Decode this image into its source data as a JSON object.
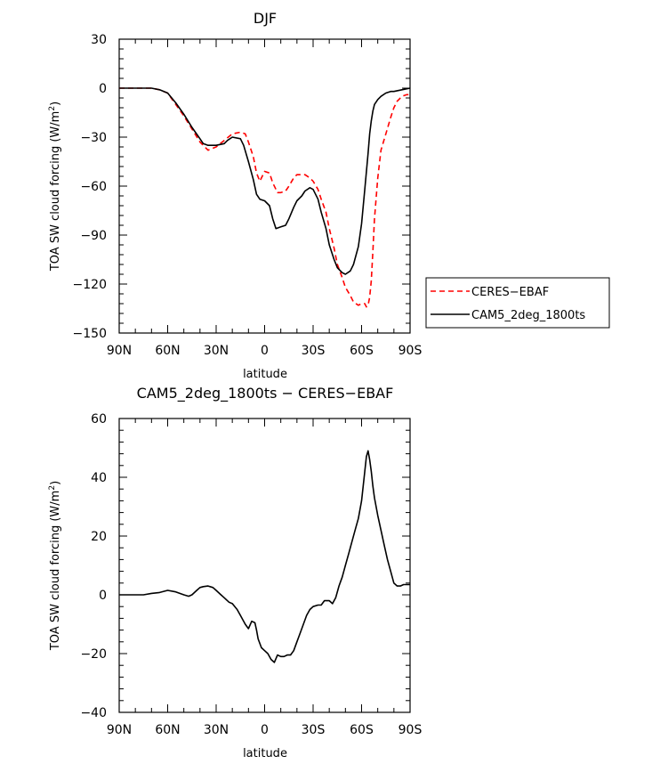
{
  "chart_data": [
    {
      "type": "line",
      "title": "DJF",
      "xlabel": "latitude",
      "ylabel": "TOA SW cloud forcing (W/m²)",
      "ylabel_main": "TOA SW cloud forcing (W/m",
      "ylabel_sup": "2",
      "ylabel_end": ")",
      "xlim": [
        -90,
        90
      ],
      "ylim": [
        -150,
        30
      ],
      "xticks": [
        -90,
        -60,
        -30,
        0,
        30,
        60,
        90
      ],
      "xticklabels": [
        "90N",
        "60N",
        "30N",
        "0",
        "30S",
        "60S",
        "90S"
      ],
      "yticks": [
        -150,
        -120,
        -90,
        -60,
        -30,
        0,
        30
      ],
      "yticklabels": [
        "−150",
        "−120",
        "−90",
        "−60",
        "−30",
        "0",
        "30"
      ],
      "legend_position": "outside-right",
      "series": [
        {
          "name": "CERES−EBAF",
          "color": "#ff0000",
          "dash": "dashed",
          "x": [
            -90,
            -80,
            -70,
            -65,
            -60,
            -55,
            -50,
            -45,
            -40,
            -35,
            -30,
            -25,
            -20,
            -15,
            -12,
            -10,
            -7,
            -5,
            -3,
            0,
            3,
            5,
            8,
            10,
            13,
            15,
            18,
            20,
            23,
            25,
            28,
            30,
            33,
            35,
            38,
            40,
            43,
            45,
            48,
            50,
            53,
            55,
            58,
            60,
            62,
            63,
            64,
            65,
            66,
            67,
            68,
            70,
            72,
            75,
            78,
            80,
            82,
            85,
            88,
            90
          ],
          "values": [
            0,
            0,
            0,
            -1,
            -3,
            -10,
            -17,
            -25,
            -33,
            -38,
            -36,
            -32,
            -28,
            -27,
            -28,
            -33,
            -42,
            -52,
            -57,
            -51,
            -52,
            -58,
            -64,
            -64,
            -63,
            -60,
            -55,
            -53,
            -53,
            -53,
            -55,
            -57,
            -62,
            -68,
            -76,
            -86,
            -98,
            -108,
            -116,
            -122,
            -127,
            -131,
            -133,
            -132,
            -132,
            -134,
            -133,
            -128,
            -118,
            -100,
            -80,
            -55,
            -38,
            -28,
            -18,
            -12,
            -8,
            -5,
            -4,
            -4
          ]
        },
        {
          "name": "CAM5_2deg_1800ts",
          "color": "#000000",
          "dash": "solid",
          "x": [
            -90,
            -80,
            -70,
            -65,
            -60,
            -55,
            -50,
            -45,
            -40,
            -38,
            -35,
            -30,
            -25,
            -23,
            -20,
            -15,
            -13,
            -10,
            -7,
            -5,
            -3,
            0,
            3,
            5,
            7,
            10,
            13,
            15,
            18,
            20,
            23,
            25,
            28,
            30,
            33,
            35,
            38,
            40,
            43,
            45,
            48,
            50,
            53,
            55,
            58,
            60,
            62,
            64,
            65,
            66,
            67,
            68,
            70,
            72,
            75,
            78,
            80,
            85,
            90
          ],
          "values": [
            0,
            0,
            0,
            -1,
            -3,
            -9,
            -16,
            -24,
            -31,
            -34,
            -35,
            -35,
            -34,
            -32,
            -30,
            -31,
            -35,
            -45,
            -56,
            -65,
            -68,
            -69,
            -72,
            -80,
            -86,
            -85,
            -84,
            -80,
            -73,
            -69,
            -66,
            -63,
            -61,
            -62,
            -68,
            -76,
            -86,
            -96,
            -105,
            -110,
            -113,
            -114,
            -112,
            -108,
            -97,
            -83,
            -62,
            -40,
            -28,
            -20,
            -14,
            -10,
            -7,
            -5,
            -3,
            -2,
            -2,
            -1,
            0
          ]
        }
      ]
    },
    {
      "type": "line",
      "title": "CAM5_2deg_1800ts − CERES−EBAF",
      "xlabel": "latitude",
      "ylabel": "TOA SW cloud forcing (W/m²)",
      "ylabel_main": "TOA SW cloud forcing (W/m",
      "ylabel_sup": "2",
      "ylabel_end": ")",
      "xlim": [
        -90,
        90
      ],
      "ylim": [
        -40,
        60
      ],
      "xticks": [
        -90,
        -60,
        -30,
        0,
        30,
        60,
        90
      ],
      "xticklabels": [
        "90N",
        "60N",
        "30N",
        "0",
        "30S",
        "60S",
        "90S"
      ],
      "yticks": [
        -40,
        -20,
        0,
        20,
        40,
        60
      ],
      "yticklabels": [
        "−40",
        "−20",
        "0",
        "20",
        "40",
        "60"
      ],
      "series": [
        {
          "color": "#000000",
          "dash": "solid",
          "x": [
            -90,
            -85,
            -80,
            -75,
            -70,
            -65,
            -60,
            -55,
            -50,
            -47,
            -45,
            -42,
            -40,
            -38,
            -35,
            -32,
            -30,
            -27,
            -25,
            -22,
            -20,
            -17,
            -15,
            -12,
            -10,
            -8,
            -6,
            -5,
            -4,
            -2,
            0,
            2,
            4,
            6,
            8,
            10,
            12,
            14,
            16,
            18,
            20,
            22,
            24,
            26,
            28,
            30,
            33,
            35,
            37,
            40,
            42,
            44,
            46,
            48,
            50,
            52,
            54,
            56,
            58,
            60,
            62,
            63,
            64,
            65,
            66,
            67,
            68,
            70,
            72,
            74,
            76,
            78,
            80,
            82,
            84,
            86,
            88,
            90
          ],
          "values": [
            0,
            0,
            0,
            0,
            0.5,
            0.8,
            1.5,
            1,
            0,
            -0.5,
            0,
            1.5,
            2.5,
            2.8,
            3,
            2.5,
            1.5,
            0,
            -1,
            -2.5,
            -3,
            -5,
            -7,
            -10,
            -11.5,
            -9,
            -9.5,
            -12,
            -15,
            -18,
            -19,
            -20,
            -22,
            -23,
            -20.5,
            -21,
            -21,
            -20.5,
            -20.5,
            -19,
            -16,
            -13,
            -10,
            -7,
            -5,
            -4,
            -3.5,
            -3.5,
            -2,
            -2,
            -3,
            -1,
            3,
            6,
            10,
            14,
            18,
            22,
            26,
            32,
            42,
            47,
            49,
            46,
            42,
            37,
            33,
            27,
            22,
            17,
            12,
            8,
            4,
            3,
            3,
            3.5,
            3.5,
            3.5
          ]
        }
      ]
    }
  ]
}
